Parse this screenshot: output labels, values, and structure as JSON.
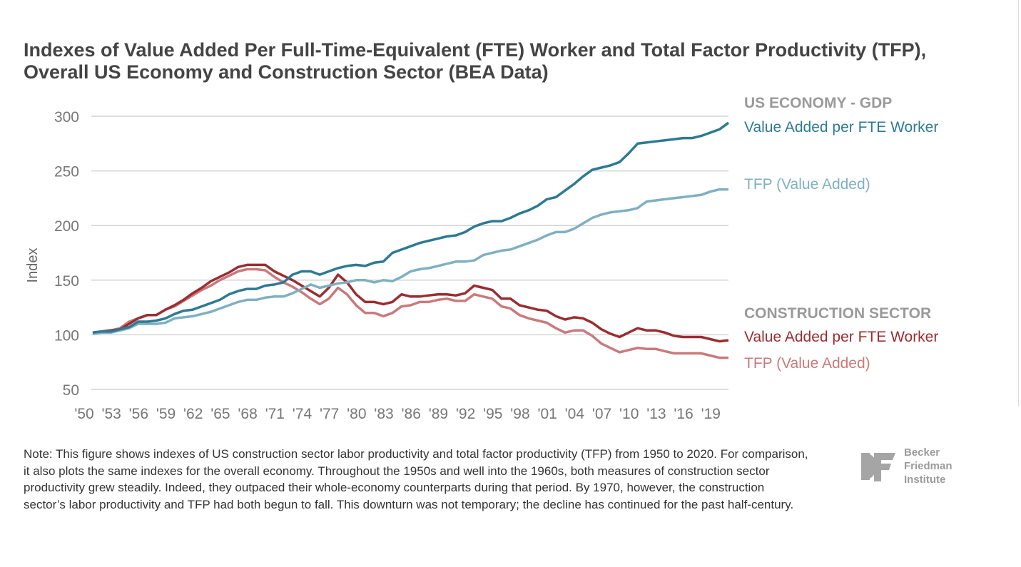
{
  "chart_data": {
    "type": "line",
    "title": "Indexes of Value Added Per Full-Time-Equivalent (FTE) Worker and Total Factor Productivity (TFP), Overall US Economy and Construction Sector (BEA Data)",
    "ylabel": "Index",
    "xlabel": "",
    "ylim": [
      50,
      300
    ],
    "yticks": [
      50,
      100,
      150,
      200,
      250,
      300
    ],
    "xticks": [
      "'50",
      "'53",
      "'56",
      "'59",
      "'62",
      "'65",
      "'68",
      "'71",
      "'74",
      "'77",
      "'80",
      "'83",
      "'86",
      "'89",
      "'92",
      "'95",
      "'98",
      "'01",
      "'04",
      "'07",
      "'10",
      "'13",
      "'16",
      "'19"
    ],
    "x_start": 1950,
    "x_end": 2020,
    "grid": true,
    "legend_groups": [
      {
        "heading": "US ECONOMY - GDP",
        "entries": [
          "Value Added per FTE Worker",
          "TFP (Value Added)"
        ]
      },
      {
        "heading": "CONSTRUCTION SECTOR",
        "entries": [
          "Value Added per FTE Worker",
          "TFP (Value Added)"
        ]
      }
    ],
    "series": [
      {
        "name": "US Economy - Value Added per FTE Worker",
        "color": "#2e7a92",
        "values": [
          102,
          103,
          103,
          105,
          107,
          112,
          112,
          113,
          115,
          119,
          122,
          123,
          126,
          129,
          132,
          137,
          140,
          142,
          142,
          145,
          146,
          148,
          155,
          158,
          158,
          155,
          158,
          161,
          163,
          164,
          163,
          166,
          167,
          175,
          178,
          181,
          184,
          186,
          188,
          190,
          191,
          194,
          199,
          202,
          204,
          204,
          207,
          211,
          214,
          218,
          224,
          226,
          232,
          238,
          245,
          251,
          253,
          255,
          258,
          266,
          275,
          276,
          277,
          278,
          279,
          280,
          280,
          282,
          285,
          288,
          294
        ]
      },
      {
        "name": "US Economy - TFP (Value Added)",
        "color": "#7fb0c2",
        "values": [
          101,
          102,
          102,
          104,
          106,
          110,
          110,
          110,
          111,
          115,
          116,
          117,
          119,
          121,
          124,
          127,
          130,
          132,
          132,
          134,
          135,
          135,
          138,
          142,
          146,
          143,
          145,
          147,
          148,
          150,
          150,
          148,
          150,
          149,
          153,
          158,
          160,
          161,
          163,
          165,
          167,
          167,
          168,
          173,
          175,
          177,
          178,
          181,
          184,
          187,
          191,
          194,
          194,
          197,
          202,
          207,
          210,
          212,
          213,
          214,
          216,
          222,
          223,
          224,
          225,
          226,
          227,
          228,
          231,
          233,
          233
        ]
      },
      {
        "name": "Construction - Value Added per FTE Worker",
        "color": "#9b2d32",
        "values": [
          102,
          103,
          104,
          105,
          110,
          115,
          118,
          118,
          123,
          127,
          132,
          138,
          143,
          149,
          153,
          157,
          162,
          164,
          164,
          164,
          158,
          154,
          150,
          145,
          140,
          135,
          143,
          155,
          148,
          137,
          130,
          130,
          128,
          130,
          137,
          135,
          135,
          136,
          137,
          137,
          136,
          138,
          145,
          143,
          141,
          133,
          133,
          127,
          125,
          123,
          122,
          117,
          114,
          116,
          115,
          111,
          105,
          101,
          98,
          102,
          106,
          104,
          104,
          102,
          99,
          98,
          98,
          98,
          96,
          94,
          95
        ]
      },
      {
        "name": "Construction - TFP (Value Added)",
        "color": "#c97a7c",
        "values": [
          101,
          103,
          104,
          106,
          112,
          115,
          118,
          118,
          123,
          126,
          131,
          136,
          141,
          145,
          150,
          154,
          158,
          160,
          160,
          159,
          153,
          148,
          144,
          139,
          133,
          128,
          133,
          143,
          137,
          127,
          120,
          120,
          117,
          120,
          126,
          127,
          130,
          130,
          132,
          133,
          131,
          131,
          137,
          135,
          133,
          126,
          124,
          118,
          115,
          113,
          111,
          106,
          102,
          104,
          104,
          99,
          92,
          88,
          84,
          86,
          88,
          87,
          87,
          85,
          83,
          83,
          83,
          83,
          81,
          79,
          79
        ]
      }
    ]
  },
  "note": "Note: This figure shows indexes of US construction sector labor productivity and total factor productivity (TFP) from 1950 to 2020. For comparison, it also plots the same indexes for the overall economy. Throughout the 1950s and well into the 1960s, both measures of construction sector productivity grew steadily. Indeed, they outpaced their whole-economy counterparts during that period. By 1970, however, the construction sector’s labor productivity and TFP had both begun to fall. This downturn was not temporary; the decline has continued for the past half-century.",
  "logo": {
    "lines": [
      "Becker",
      "Friedman",
      "Institute"
    ],
    "mark": "BF"
  }
}
